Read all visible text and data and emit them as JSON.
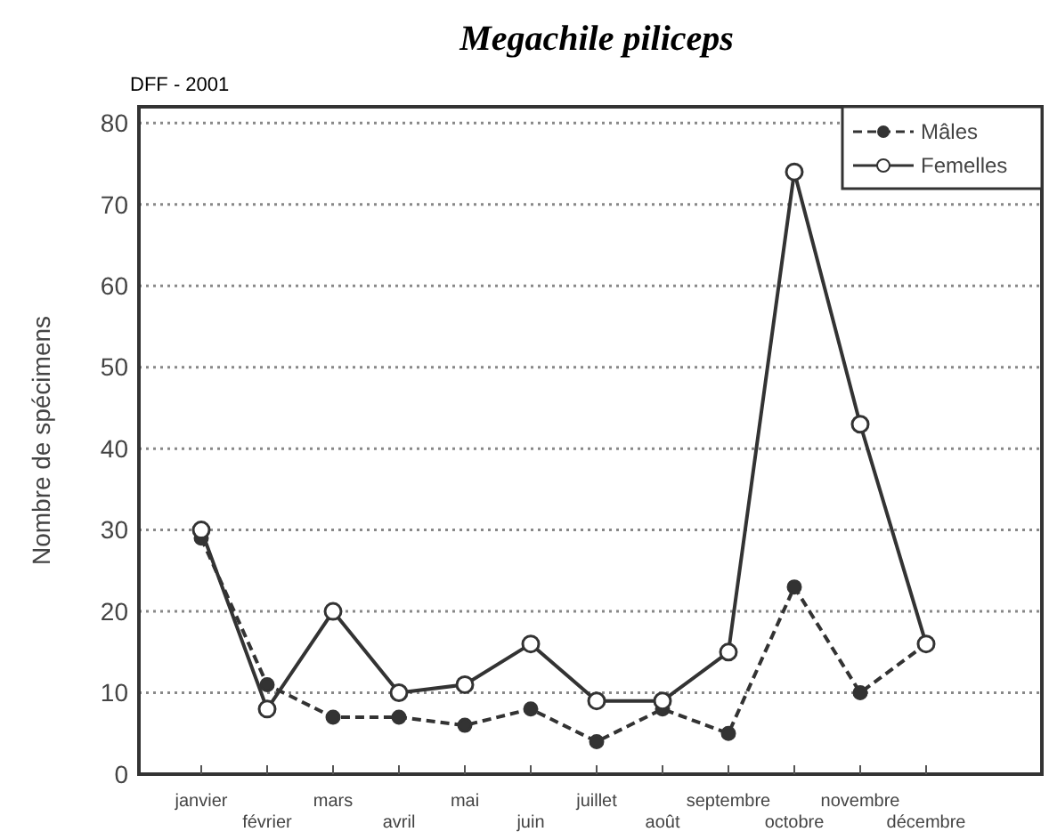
{
  "chart_data": {
    "type": "line",
    "title": "Megachile piliceps",
    "ylabel": "Nombre de spécimens",
    "annotations": [
      "DFF - 2001"
    ],
    "categories": [
      "janvier",
      "février",
      "mars",
      "avril",
      "mai",
      "juin",
      "juillet",
      "août",
      "septembre",
      "octobre",
      "novembre",
      "décembre"
    ],
    "series": [
      {
        "name": "Mâles",
        "color": "#333333",
        "values": [
          29,
          11,
          7,
          7,
          6,
          8,
          4,
          8,
          5,
          23,
          10,
          16
        ],
        "marker": "circle",
        "line_style": "dashed"
      },
      {
        "name": "Femelles",
        "color": "#333333",
        "values": [
          30,
          8,
          20,
          10,
          11,
          16,
          9,
          9,
          15,
          74,
          43,
          16
        ],
        "marker": "circle",
        "line_style": "solid"
      }
    ],
    "ylim": [
      0,
      82
    ],
    "yticks": [
      0,
      10,
      20,
      30,
      40,
      50,
      60,
      70,
      80
    ],
    "grid": "y",
    "legend": "top right"
  }
}
